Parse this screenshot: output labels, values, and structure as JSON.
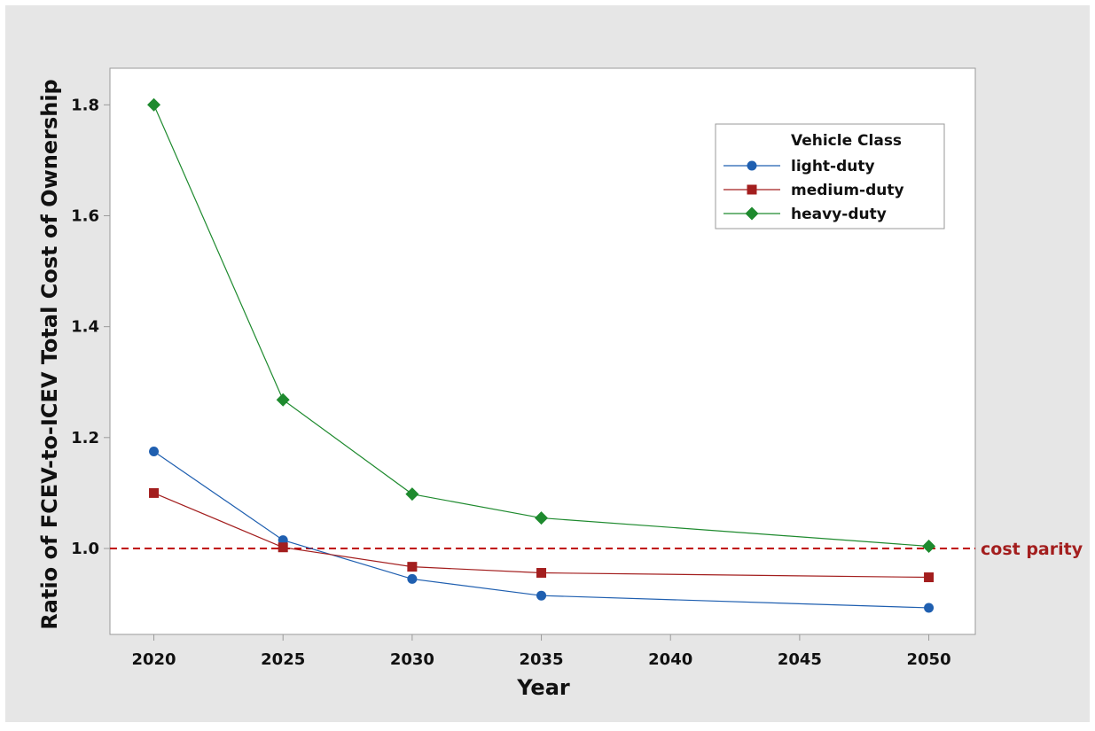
{
  "chart_data": {
    "type": "line",
    "xlabel": "Year",
    "ylabel": "Ratio of FCEV-to-ICEV Total Cost of Ownership",
    "x_ticks": [
      2020,
      2025,
      2030,
      2035,
      2040,
      2045,
      2050
    ],
    "y_ticks": [
      1.0,
      1.2,
      1.4,
      1.6,
      1.8
    ],
    "y_tick_labels": [
      "1.0",
      "1.2",
      "1.4",
      "1.6",
      "1.8"
    ],
    "xlim": [
      2018.3,
      2051.8
    ],
    "ylim": [
      0.845,
      1.866
    ],
    "grid": false,
    "legend": {
      "title": "Vehicle Class",
      "placement": "top-right"
    },
    "reference_line": {
      "y": 1.0,
      "label": "cost parity",
      "color": "#c00000",
      "style": "dashed"
    },
    "series": [
      {
        "name": "light-duty",
        "color": "#1f5fb0",
        "marker": "circle",
        "x": [
          2020,
          2025,
          2030,
          2035,
          2050
        ],
        "values": [
          1.175,
          1.015,
          0.945,
          0.915,
          0.893
        ]
      },
      {
        "name": "medium-duty",
        "color": "#a31e1e",
        "marker": "square",
        "x": [
          2020,
          2025,
          2030,
          2035,
          2050
        ],
        "values": [
          1.1,
          1.002,
          0.967,
          0.956,
          0.948
        ]
      },
      {
        "name": "heavy-duty",
        "color": "#1e8a2e",
        "marker": "diamond",
        "x": [
          2020,
          2025,
          2030,
          2035,
          2050
        ],
        "values": [
          1.8,
          1.268,
          1.098,
          1.055,
          1.004
        ]
      }
    ]
  },
  "colors": {
    "outer_background": "#e6e6e6",
    "plot_background": "#ffffff",
    "axis_color": "#9a9a9a",
    "reference_label_color": "#a31e1e"
  }
}
